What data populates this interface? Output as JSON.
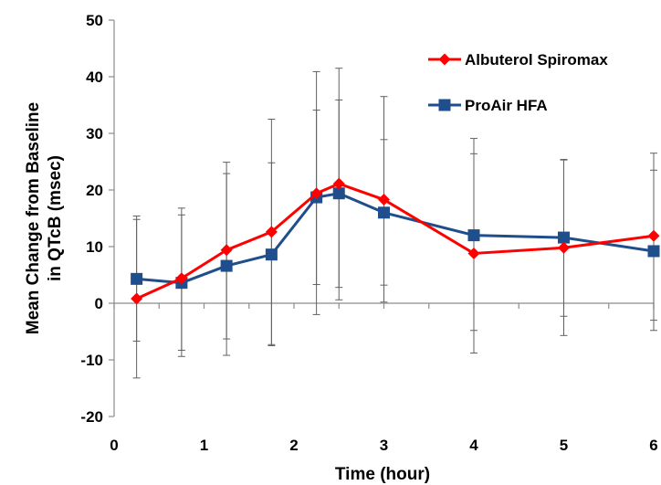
{
  "chart_data": {
    "type": "line",
    "title": "",
    "xlabel": "Time (hour)",
    "ylabel_lines": [
      "Mean Change from Baseline",
      "in QTcB (msec)"
    ],
    "xlim": [
      0,
      6
    ],
    "ylim": [
      -20,
      50
    ],
    "xticks": [
      0,
      1,
      2,
      3,
      4,
      5,
      6
    ],
    "yticks": [
      -20,
      -10,
      0,
      10,
      20,
      30,
      40,
      50
    ],
    "grid": false,
    "legend_position": "top-right",
    "series": [
      {
        "name": "Albuterol Spiromax",
        "color": "#ff0000",
        "marker": "diamond",
        "x": [
          0.25,
          0.75,
          1.25,
          1.75,
          2.25,
          2.5,
          3,
          4,
          5,
          6
        ],
        "y": [
          0.8,
          4.4,
          9.4,
          12.6,
          19.4,
          21.1,
          18.3,
          8.8,
          9.8,
          11.9
        ],
        "err_low": [
          -13.2,
          -9.4,
          -6.3,
          -7.5,
          3.3,
          0.6,
          0.2,
          -4.8,
          -5.7,
          -3.0
        ],
        "err_high": [
          14.8,
          16.8,
          22.9,
          32.5,
          40.9,
          41.5,
          36.5,
          26.4,
          25.3,
          26.5
        ]
      },
      {
        "name": "ProAir HFA",
        "color": "#1f4e8c",
        "marker": "square",
        "x": [
          0.25,
          0.75,
          1.25,
          1.75,
          2.25,
          2.5,
          3,
          4,
          5,
          6
        ],
        "y": [
          4.3,
          3.6,
          6.6,
          8.6,
          18.7,
          19.4,
          16.0,
          12.0,
          11.6,
          9.2
        ],
        "err_low": [
          -6.7,
          -8.3,
          -9.2,
          -7.3,
          -2.0,
          2.8,
          3.2,
          -8.8,
          -2.3,
          -4.8
        ],
        "err_high": [
          15.4,
          15.6,
          24.9,
          24.8,
          34.1,
          35.9,
          28.9,
          29.1,
          25.4,
          23.5
        ]
      }
    ]
  }
}
